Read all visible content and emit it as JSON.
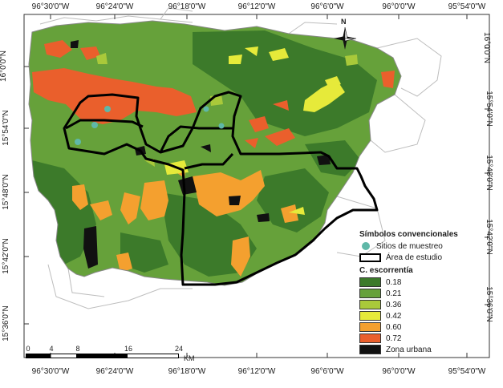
{
  "coords": {
    "top": [
      "96°30'0\"W",
      "96°24'0\"W",
      "96°18'0\"W",
      "96°12'0\"W",
      "96°6'0\"W",
      "96°0'0\"W",
      "95°54'0\"W"
    ],
    "bottom": [
      "96°30'0\"W",
      "96°24'0\"W",
      "96°18'0\"W",
      "96°12'0\"W",
      "96°6'0\"W",
      "96°0'0\"W",
      "95°54'0\"W"
    ],
    "left": [
      "16°0'0\"N",
      "15°54'0\"N",
      "15°48'0\"N",
      "15°42'0\"N",
      "15°36'0\"N"
    ],
    "right": [
      "16°0'0\"N",
      "15°54'0\"N",
      "15°48'0\"N",
      "15°42'0\"N",
      "15°36'0\"N"
    ]
  },
  "north": {
    "label": "N",
    "icon": "compass-rose-icon"
  },
  "legend": {
    "title": "Símbolos convencionales",
    "sample_sites": "Sitios de muestreo",
    "study_area": "Área de estudio",
    "classes_title": "C. escorrentía",
    "classes": [
      {
        "label": "0.18",
        "color": "#3c7a2a"
      },
      {
        "label": "0.21",
        "color": "#66a13a"
      },
      {
        "label": "0.36",
        "color": "#a9c93a"
      },
      {
        "label": "0.42",
        "color": "#e6ea3a"
      },
      {
        "label": "0.60",
        "color": "#f4a02f"
      },
      {
        "label": "0.72",
        "color": "#ea5f2c"
      }
    ],
    "urban": {
      "label": "Zona urbana",
      "color": "#111111"
    },
    "site_color": "#5fb8a8"
  },
  "scale": {
    "ticks": [
      "0",
      "4",
      "8",
      "16",
      "24"
    ],
    "unit": "KM"
  }
}
